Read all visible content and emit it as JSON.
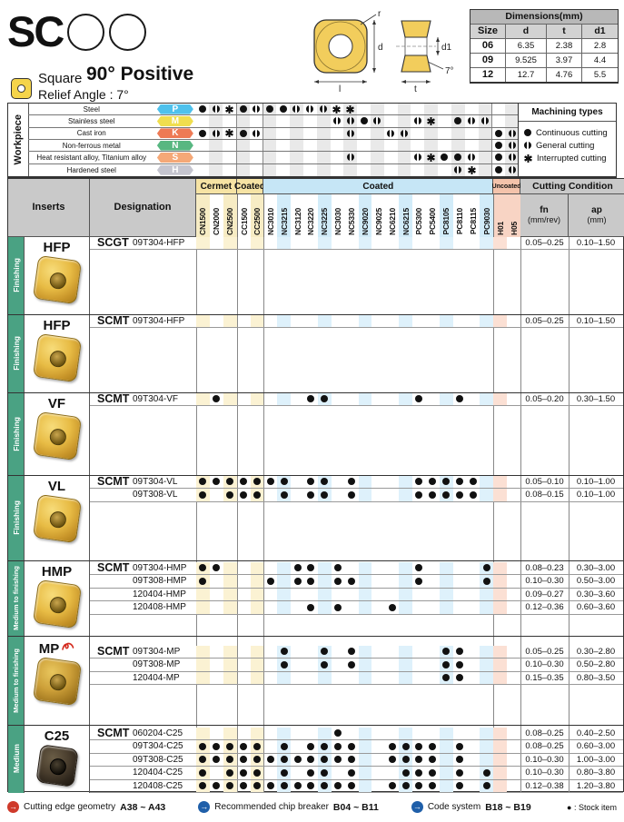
{
  "header": {
    "logo": "SC",
    "type_label": "Square",
    "title": "90° Positive",
    "relief": "Relief Angle : 7°"
  },
  "dimensions": {
    "title": "Dimensions(mm)",
    "columns": [
      "Size",
      "d",
      "t",
      "d1"
    ],
    "rows": [
      [
        "06",
        "6.35",
        "2.38",
        "2.8"
      ],
      [
        "09",
        "9.525",
        "3.97",
        "4.4"
      ],
      [
        "12",
        "12.7",
        "4.76",
        "5.5"
      ]
    ]
  },
  "diagram": {
    "r": "r",
    "d": "d",
    "l": "l",
    "d1": "d1",
    "t": "t",
    "angle": "7°"
  },
  "workpiece": {
    "label": "Workpiece",
    "rows": [
      {
        "name": "Steel",
        "letter": "P",
        "color": "#4ec1ec",
        "dots": {
          "0": "c",
          "1": "g",
          "2": "i",
          "3": "c",
          "4": "g",
          "5": "c",
          "6": "c",
          "7": "g",
          "8": "g",
          "9": "g",
          "10": "i",
          "11": "i"
        }
      },
      {
        "name": "Stainless steel",
        "letter": "M",
        "color": "#f0de4e",
        "dots": {
          "10": "g",
          "11": "g",
          "12": "c",
          "13": "g",
          "16": "g",
          "17": "i",
          "19": "c",
          "20": "g",
          "21": "g"
        }
      },
      {
        "name": "Cast iron",
        "letter": "K",
        "color": "#ee7a55",
        "dots": {
          "0": "c",
          "1": "g",
          "2": "i",
          "3": "c",
          "4": "g",
          "11": "g",
          "14": "g",
          "15": "g",
          "22": "c",
          "23": "g"
        }
      },
      {
        "name": "Non-ferrous metal",
        "letter": "N",
        "color": "#58b781",
        "dots": {
          "22": "c",
          "23": "g"
        }
      },
      {
        "name": "Heat resistant alloy, Titanium alloy",
        "letter": "S",
        "color": "#f5a877",
        "dots": {
          "11": "g",
          "16": "g",
          "17": "i",
          "18": "c",
          "19": "c",
          "20": "g",
          "22": "c",
          "23": "g"
        }
      },
      {
        "name": "Hardened steel",
        "letter": "H",
        "color": "#c5c5cf",
        "dots": {
          "19": "g",
          "20": "i",
          "22": "c",
          "23": "g"
        }
      }
    ],
    "legend": {
      "title": "Machining types",
      "items": [
        {
          "sym": "c",
          "label": "Continuous cutting"
        },
        {
          "sym": "g",
          "label": "General cutting"
        },
        {
          "sym": "i",
          "label": "Interrupted cutting"
        }
      ]
    }
  },
  "grades": {
    "groups": [
      {
        "label": "Cermet",
        "zone": "y",
        "span": 3
      },
      {
        "label": "Coated",
        "zone": "y",
        "span": 2
      },
      {
        "label": "Coated",
        "zone": "b",
        "span": 17
      },
      {
        "label": "Uncoated",
        "zone": "p",
        "span": 2
      }
    ],
    "columns": [
      "CN1500",
      "CN2000",
      "CN2500",
      "CC1500",
      "CC2500",
      "NC3010",
      "NC3215",
      "NC3120",
      "NC3220",
      "NC3225",
      "NC3030",
      "NC5330",
      "NC9020",
      "NC9025",
      "NC6210",
      "NC6215",
      "PC5300",
      "PC5400",
      "PC8105",
      "PC8110",
      "PC8115",
      "PC9030",
      "H01",
      "H05"
    ]
  },
  "table": {
    "inserts": "Inserts",
    "designation": "Designation",
    "cutting": "Cutting Condition",
    "fn": "fn",
    "fn_unit": "(mm/rev)",
    "ap": "ap",
    "ap_unit": "(mm)",
    "group_color": "#4aa283",
    "blocks": [
      {
        "group": "Finishing",
        "name": "HFP",
        "prefix": "SCGT",
        "photo": "gold",
        "rows": [
          {
            "code": "09T304-HFP",
            "dots": [],
            "fn": "0.05–0.25",
            "ap": "0.10–1.50"
          }
        ]
      },
      {
        "group": "Finishing",
        "name": "HFP",
        "prefix": "SCMT",
        "photo": "gold",
        "rows": [
          {
            "code": "09T304-HFP",
            "dots": [],
            "fn": "0.05–0.25",
            "ap": "0.10–1.50"
          }
        ]
      },
      {
        "group": "Finishing",
        "name": "VF",
        "prefix": "SCMT",
        "photo": "gold",
        "rows": [
          {
            "code": "09T304-VF",
            "dots": [
              1,
              8,
              9,
              16,
              19
            ],
            "fn": "0.05–0.20",
            "ap": "0.30–1.50"
          }
        ]
      },
      {
        "group": "Finishing",
        "name": "VL",
        "prefix": "SCMT",
        "photo": "gold",
        "rows": [
          {
            "code": "09T304-VL",
            "dots": [
              0,
              1,
              2,
              3,
              4,
              5,
              6,
              8,
              9,
              11,
              16,
              17,
              18,
              19,
              20
            ],
            "fn": "0.05–0.10",
            "ap": "0.10–1.00"
          },
          {
            "code": "09T308-VL",
            "dots": [
              0,
              2,
              3,
              4,
              6,
              8,
              9,
              11,
              16,
              17,
              18,
              19,
              20
            ],
            "fn": "0.08–0.15",
            "ap": "0.10–1.00"
          }
        ]
      },
      {
        "group": "Medium to finishing",
        "name": "HMP",
        "prefix": "SCMT",
        "photo": "gold",
        "rows": [
          {
            "code": "09T304-HMP",
            "dots": [
              0,
              1,
              7,
              8,
              10,
              16,
              21
            ],
            "fn": "0.08–0.23",
            "ap": "0.30–3.00"
          },
          {
            "code": "09T308-HMP",
            "dots": [
              0,
              5,
              7,
              8,
              10,
              11,
              16,
              21
            ],
            "fn": "0.10–0.30",
            "ap": "0.50–3.00"
          },
          {
            "code": "120404-HMP",
            "dots": [],
            "fn": "0.09–0.27",
            "ap": "0.30–3.60"
          },
          {
            "code": "120408-HMP",
            "dots": [
              8,
              10,
              14
            ],
            "fn": "0.12–0.36",
            "ap": "0.60–3.60"
          }
        ]
      },
      {
        "group": "Medium to finishing",
        "name": "MP",
        "prefix": "SCMT",
        "photo": "bronze",
        "new_mark": true,
        "rows": [
          {
            "code": "09T304-MP",
            "dots": [
              6,
              9,
              11,
              18,
              19
            ],
            "fn": "0.05–0.25",
            "ap": "0.30–2.80"
          },
          {
            "code": "09T308-MP",
            "dots": [
              6,
              9,
              11,
              18,
              19
            ],
            "fn": "0.10–0.30",
            "ap": "0.50–2.80"
          },
          {
            "code": "120404-MP",
            "dots": [
              18,
              19
            ],
            "fn": "0.15–0.35",
            "ap": "0.80–3.50"
          }
        ]
      },
      {
        "group": "Medium",
        "name": "C25",
        "prefix": "SCMT",
        "photo": "dark",
        "rows": [
          {
            "code": "060204-C25",
            "dots": [
              10
            ],
            "fn": "0.08–0.25",
            "ap": "0.40–2.50"
          },
          {
            "code": "09T304-C25",
            "dots": [
              0,
              1,
              2,
              3,
              4,
              6,
              8,
              9,
              10,
              11,
              14,
              15,
              16,
              17,
              19
            ],
            "fn": "0.08–0.25",
            "ap": "0.60–3.00"
          },
          {
            "code": "09T308-C25",
            "dots": [
              0,
              1,
              2,
              3,
              4,
              5,
              6,
              7,
              8,
              9,
              10,
              11,
              14,
              15,
              16,
              17,
              19
            ],
            "fn": "0.10–0.30",
            "ap": "1.00–3.00"
          },
          {
            "code": "120404-C25",
            "dots": [
              0,
              2,
              3,
              4,
              6,
              8,
              9,
              11,
              15,
              16,
              17,
              19,
              21
            ],
            "fn": "0.10–0.30",
            "ap": "0.80–3.80"
          },
          {
            "code": "120408-C25",
            "dots": [
              0,
              1,
              2,
              3,
              4,
              5,
              6,
              7,
              8,
              9,
              10,
              11,
              14,
              15,
              16,
              17,
              19,
              21
            ],
            "fn": "0.12–0.38",
            "ap": "1.20–3.80"
          }
        ]
      }
    ]
  },
  "footer": {
    "refs": [
      {
        "label": "Cutting edge geometry",
        "pages": "A38 ~ A43",
        "color": "#cf3a2b"
      },
      {
        "label": "Recommended chip breaker",
        "pages": "B04 ~ B11",
        "color": "#1f5fa9"
      },
      {
        "label": "Code system",
        "pages": "B18 ~ B19",
        "color": "#1f5fa9"
      }
    ],
    "stock": "● : Stock item"
  }
}
